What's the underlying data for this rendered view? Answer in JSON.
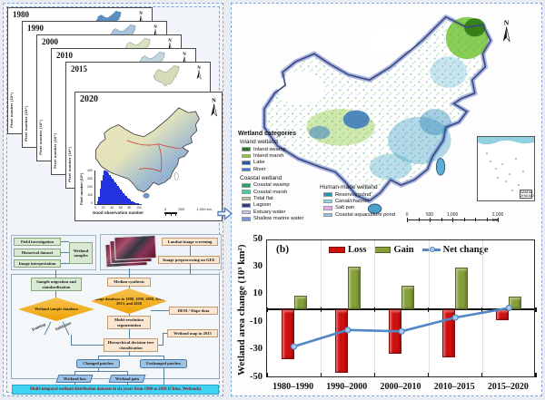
{
  "panel_stack": {
    "y_axis_label": "Pixel number (10⁶)",
    "years": [
      "1980",
      "1990",
      "2000",
      "2010",
      "2015"
    ],
    "north_label": "N",
    "panel_2020": {
      "year": "2020",
      "histogram": {
        "ylabel": "Pixel number (10⁶)",
        "xlabel": "Good observation number",
        "yticks": [
          "400",
          "300",
          "200",
          "100",
          "0"
        ],
        "xticks": [
          "0",
          "20",
          "40",
          "60",
          "80",
          "100"
        ],
        "bar_color": "#2433e0",
        "bars": [
          4,
          30,
          90,
          180,
          280,
          350,
          395,
          400,
          385,
          365,
          345,
          325,
          305,
          285,
          262,
          240,
          218,
          196,
          174,
          152,
          132,
          112,
          94,
          78,
          63,
          50,
          38,
          28,
          20,
          14,
          9,
          6,
          4,
          2
        ]
      },
      "scale_labels": [
        "0",
        "500",
        "1,000 km"
      ],
      "north_label": "N"
    }
  },
  "flowchart": {
    "inputs": [
      "Field investigation",
      "Historical dataset",
      "Image interpretation"
    ],
    "wetland_samples": "Wetland samples",
    "landsat_screening": "Landsat image screening",
    "preprocessing": "Image preprocessing on GEE",
    "sample_migration": "Sample migration and standardization",
    "median_synthesis": "Median synthesis",
    "sample_database": "Wetland sample database",
    "image_database": "Image database in 1980, 1990, 2000, 2010, 2015, and 2020",
    "training_label": "Training",
    "validation_label": "Validation",
    "segmentation": "Multi-resolution segmentation",
    "dem_slope": "DEM / Slope data",
    "wetland_map_2015": "Wetland map in 2015",
    "classification": "Hierarchical decision-tree classification",
    "changed_patches": "Changed patches",
    "unchanged_patches": "Unchanged patches",
    "wetland_loss": "Wetland loss",
    "wetland_gain": "Wetland gain",
    "output_banner": "Multi-temporal wetland distribution datasets in six years from 1980 to 2020 (China_Wetlands)"
  },
  "wetland_map": {
    "north_label": "N",
    "legend_title": "Wetland categories",
    "inland": {
      "title": "Inland wetland",
      "items": [
        {
          "label": "Inland swamp",
          "color": "#1e7a1e"
        },
        {
          "label": "Inland marsh",
          "color": "#8fd018"
        },
        {
          "label": "Lake",
          "color": "#1c5fa8"
        },
        {
          "label": "River",
          "color": "#2e7ee0"
        }
      ]
    },
    "coastal": {
      "title": "Coastal wetland",
      "items": [
        {
          "label": "Coastal swamp",
          "color": "#28a060"
        },
        {
          "label": "Coastal marsh",
          "color": "#3ed2a0"
        },
        {
          "label": "Tidal flat",
          "color": "#cab88c"
        },
        {
          "label": "Lagoon",
          "color": "#2c3e90"
        },
        {
          "label": "Estuary water",
          "color": "#b9c9ec"
        },
        {
          "label": "Shallow marine water",
          "color": "#7d90d8"
        }
      ]
    },
    "human": {
      "title": "Human-made wetland",
      "items": [
        {
          "label": "Reservoir/pond",
          "color": "#2792b8"
        },
        {
          "label": "Canal/channel",
          "color": "#7bdcf2"
        },
        {
          "label": "Salt pan",
          "color": "#ecaaec"
        },
        {
          "label": "Coastal aquaculture pond",
          "color": "#8ec2ea"
        }
      ]
    },
    "inset_label": "NANHAI ZHUDAO",
    "scalebar_labels": [
      "0",
      "500",
      "1,000",
      "2,000 km"
    ]
  },
  "chart_data": {
    "type": "bar",
    "panel_label": "(b)",
    "title": "",
    "categories": [
      "1980–1990",
      "1990–2000",
      "2000–2010",
      "2010–2015",
      "2015–2020"
    ],
    "series": [
      {
        "name": "Loss",
        "type": "bar",
        "color": "#d01010",
        "values": [
          -36,
          -46,
          -32,
          -35,
          -8
        ]
      },
      {
        "name": "Gain",
        "type": "bar",
        "color": "#85a03a",
        "values": [
          10,
          31,
          17,
          30,
          9
        ]
      },
      {
        "name": "Net change",
        "type": "line",
        "color": "#4f87c7",
        "marker_fill": "#a9c9e8",
        "values": [
          -27,
          -15,
          -16,
          -6,
          1
        ]
      }
    ],
    "xlabel": "",
    "ylabel": "Wetland area change (10³ km²)",
    "ylim": [
      -50,
      50
    ],
    "yticks": [
      50,
      30,
      10,
      -10,
      -30,
      -50
    ],
    "grid": "vertical-light",
    "legend_position": "top-inside"
  }
}
